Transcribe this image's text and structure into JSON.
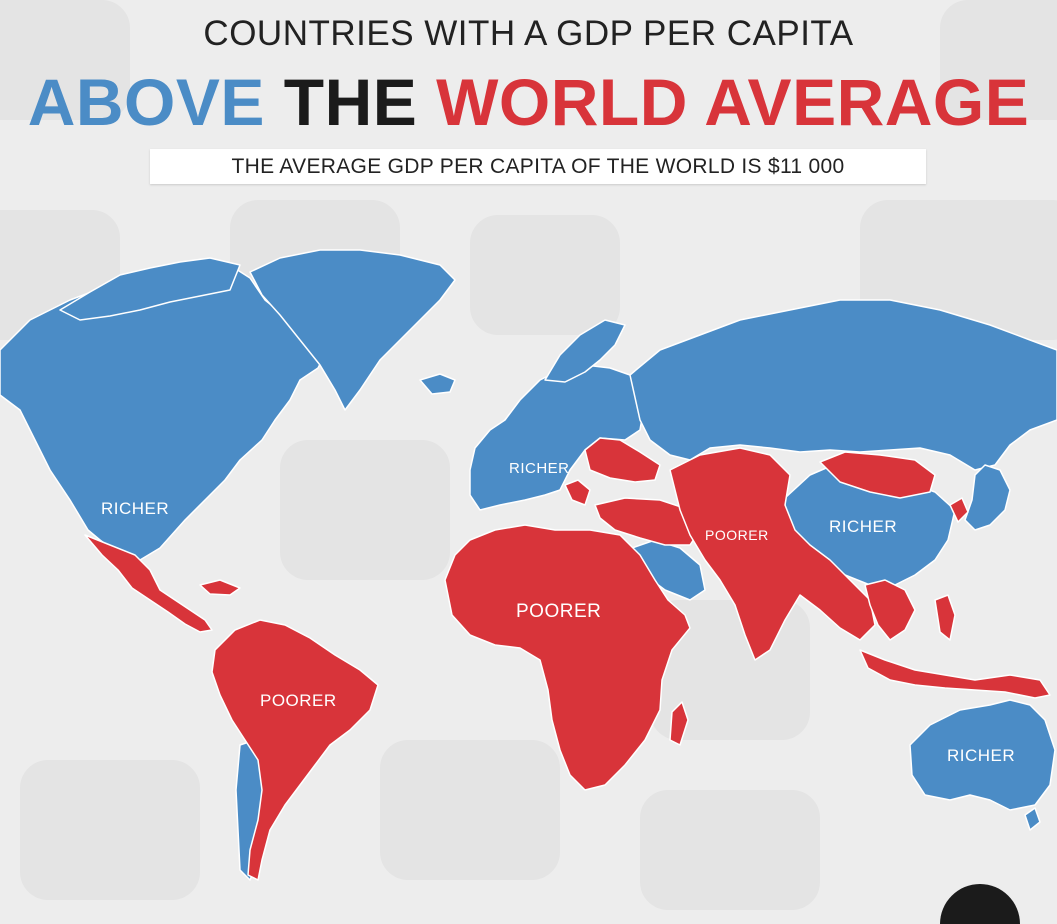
{
  "header": {
    "kicker": "COUNTRIES WITH A GDP PER CAPITA",
    "headline_word1": "ABOVE",
    "headline_word2": "THE",
    "headline_word3": "WORLD AVERAGE",
    "subtitle": "THE AVERAGE GDP PER CAPITA OF THE WORLD IS $11 000"
  },
  "colors": {
    "richer": "#4b8cc6",
    "poorer": "#d8343a",
    "background": "#ededed"
  },
  "labels": {
    "north_america": "RICHER",
    "europe": "RICHER",
    "china": "RICHER",
    "australia": "RICHER",
    "south_america": "POORER",
    "africa": "POORER",
    "central_asia": "POORER"
  }
}
